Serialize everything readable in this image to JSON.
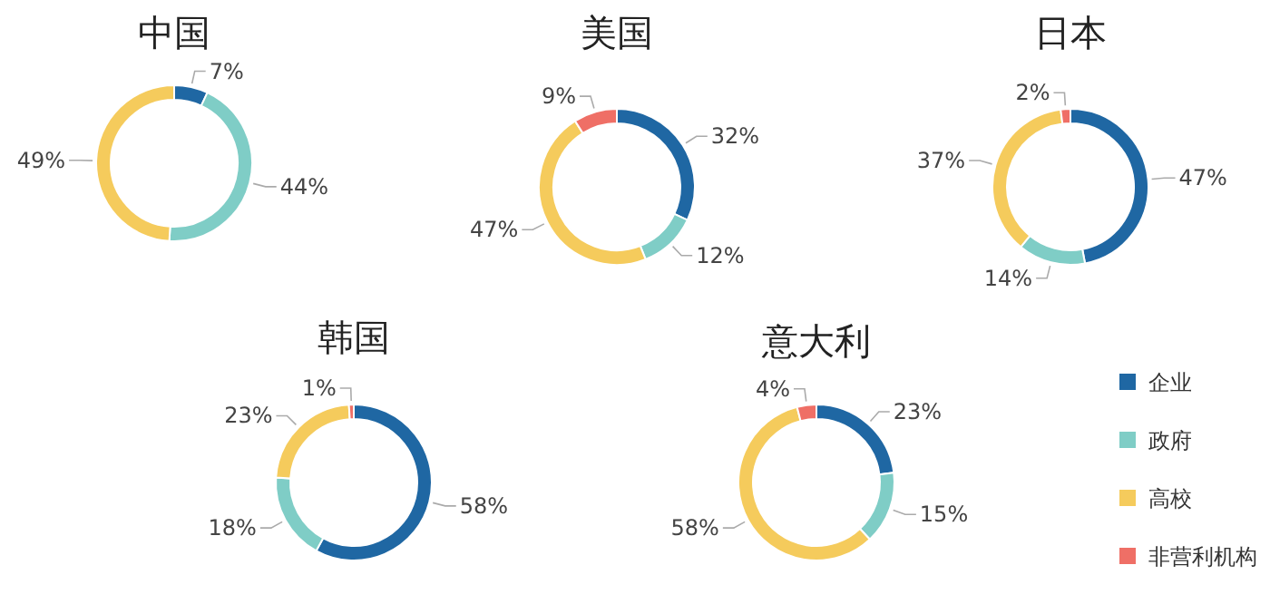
{
  "chart_data": [
    {
      "type": "donut",
      "title": "中国",
      "categories": [
        null,
        null,
        null
      ],
      "values": [
        7,
        44,
        49
      ],
      "colors": [
        "#1f67a3",
        "#7fcdc6",
        "#f5cb5c"
      ],
      "value_labels": [
        "7%",
        "44%",
        "49%"
      ]
    },
    {
      "type": "donut",
      "title": "美国",
      "categories": [
        null,
        null,
        null,
        null
      ],
      "values": [
        32,
        12,
        47,
        9
      ],
      "colors": [
        "#1f67a3",
        "#7fcdc6",
        "#f5cb5c",
        "#ef6f66"
      ],
      "value_labels": [
        "32%",
        "12%",
        "47%",
        "9%"
      ]
    },
    {
      "type": "donut",
      "title": "日本",
      "categories": [
        null,
        null,
        null,
        null
      ],
      "values": [
        47,
        14,
        37,
        2
      ],
      "colors": [
        "#1f67a3",
        "#7fcdc6",
        "#f5cb5c",
        "#ef6f66"
      ],
      "value_labels": [
        "47%",
        "14%",
        "37%",
        "2%"
      ]
    },
    {
      "type": "donut",
      "title": "韩国",
      "categories": [
        null,
        null,
        null,
        null
      ],
      "values": [
        58,
        18,
        23,
        1
      ],
      "colors": [
        "#1f67a3",
        "#7fcdc6",
        "#f5cb5c",
        "#ef6f66"
      ],
      "value_labels": [
        "58%",
        "18%",
        "23%",
        "1%"
      ]
    },
    {
      "type": "donut",
      "title": "意大利",
      "categories": [
        "企业",
        "政府",
        "高校",
        "非营利机构"
      ],
      "values": [
        23,
        15,
        58,
        4
      ],
      "colors": [
        "#1f67a3",
        "#7fcdc6",
        "#f5cb5c",
        "#ef6f66"
      ],
      "value_labels": [
        "23%",
        "15%",
        "58%",
        "4%"
      ],
      "legend": "right"
    }
  ]
}
